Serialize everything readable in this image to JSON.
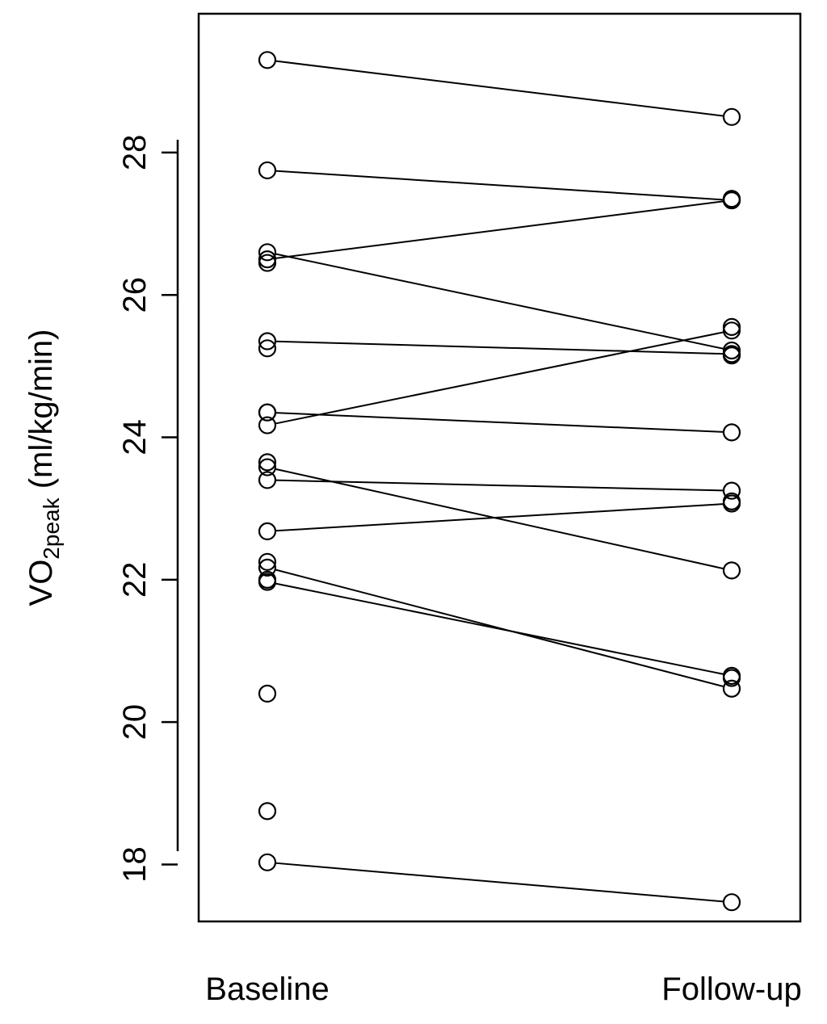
{
  "chart_data": {
    "type": "line",
    "title": "",
    "xlabel": "",
    "ylabel": {
      "main": "VO",
      "subscript": "2peak",
      "unit": " (ml/kg/min)"
    },
    "categories": [
      "Baseline",
      "Follow-up"
    ],
    "ylim": [
      17.2,
      29.95
    ],
    "yticks": [
      "18",
      "20",
      "22",
      "24",
      "26",
      "28"
    ],
    "grid": false,
    "legend": "none",
    "baseline_only": [
      18.75,
      20.4,
      22.0,
      22.25,
      23.65,
      24.35,
      25.25,
      26.45
    ],
    "followup_only": [
      25.55,
      25.15,
      23.1,
      20.62,
      27.35
    ],
    "pairs": [
      {
        "baseline": 29.3,
        "followup": 28.5
      },
      {
        "baseline": 27.75,
        "followup": 27.33
      },
      {
        "baseline": 26.5,
        "followup": 27.33
      },
      {
        "baseline": 26.6,
        "followup": 25.22
      },
      {
        "baseline": 25.35,
        "followup": 25.17
      },
      {
        "baseline": 24.17,
        "followup": 25.5
      },
      {
        "baseline": 24.35,
        "followup": 24.07
      },
      {
        "baseline": 23.4,
        "followup": 23.25
      },
      {
        "baseline": 23.58,
        "followup": 22.13
      },
      {
        "baseline": 22.68,
        "followup": 23.07
      },
      {
        "baseline": 22.17,
        "followup": 20.47
      },
      {
        "baseline": 21.97,
        "followup": 20.65
      },
      {
        "baseline": 18.03,
        "followup": 17.47
      }
    ]
  }
}
